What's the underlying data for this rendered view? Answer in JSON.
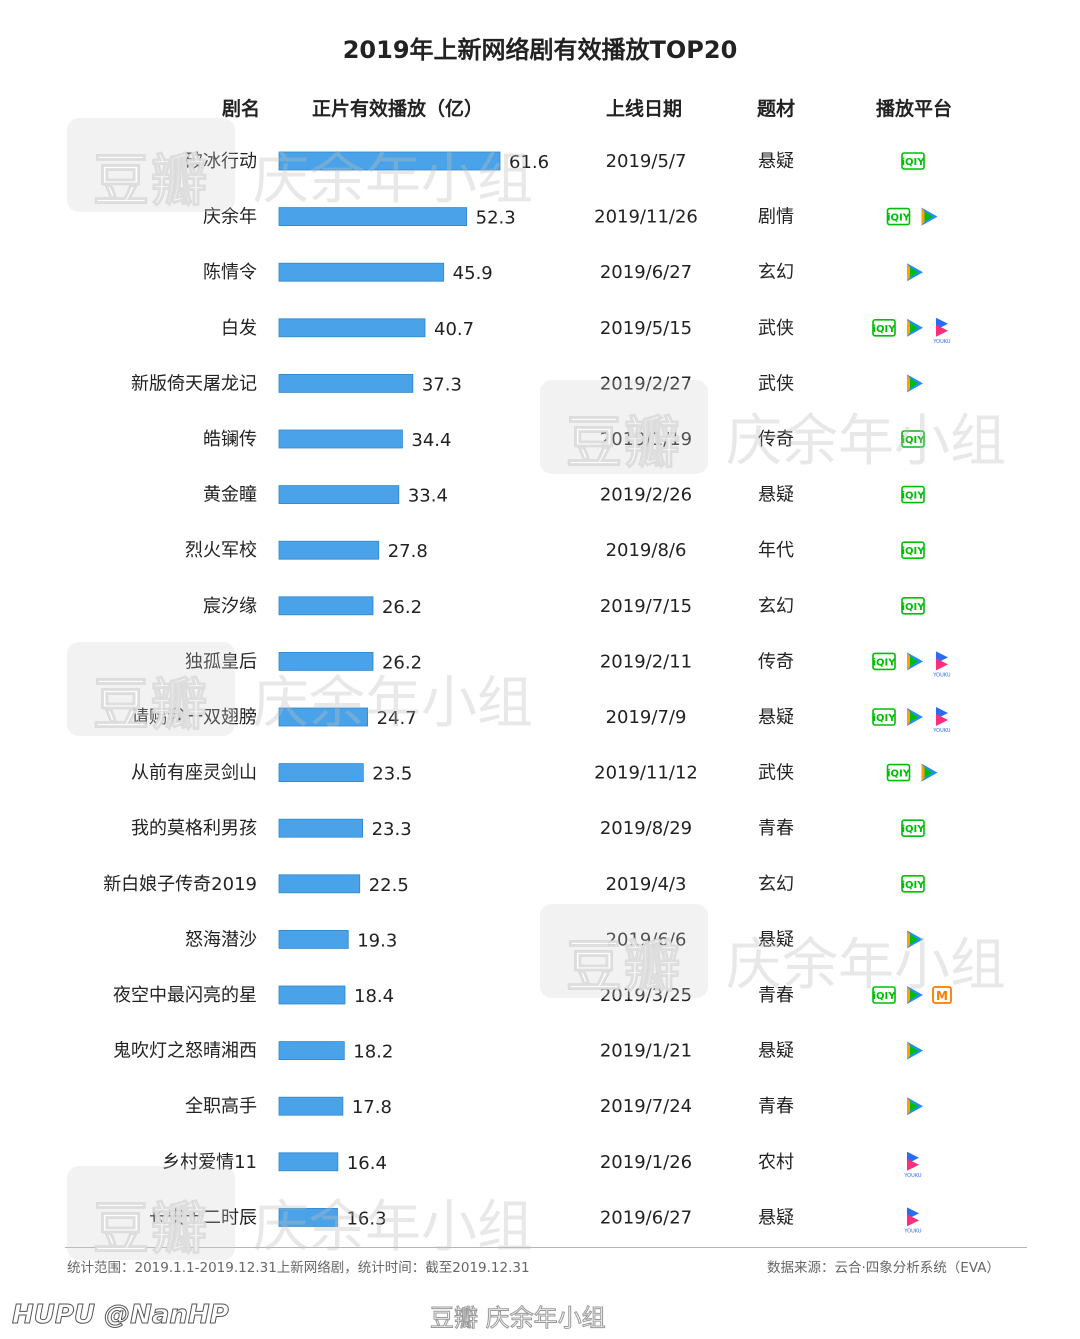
{
  "chart_data": {
    "type": "bar",
    "title": "2019年上新网络剧有效播放TOP20",
    "columns": {
      "name": "剧名",
      "plays": "正片有效播放（亿）",
      "date": "上线日期",
      "genre": "题材",
      "platform": "播放平台"
    },
    "categories": [
      "破冰行动",
      "庆余年",
      "陈情令",
      "白发",
      "新版倚天屠龙记",
      "皓镧传",
      "黄金瞳",
      "烈火军校",
      "宸汐缘",
      "独孤皇后",
      "请赐我一双翅膀",
      "从前有座灵剑山",
      "我的莫格利男孩",
      "新白娘子传奇2019",
      "怒海潜沙",
      "夜空中最闪亮的星",
      "鬼吹灯之怒晴湘西",
      "全职高手",
      "乡村爱情11",
      "长安十二时辰"
    ],
    "values": [
      61.6,
      52.3,
      45.9,
      40.7,
      37.3,
      34.4,
      33.4,
      27.8,
      26.2,
      26.2,
      24.7,
      23.5,
      23.3,
      22.5,
      19.3,
      18.4,
      18.2,
      17.8,
      16.4,
      16.3
    ],
    "dates": [
      "2019/5/7",
      "2019/11/26",
      "2019/6/27",
      "2019/5/15",
      "2019/2/27",
      "2019/1/19",
      "2019/2/26",
      "2019/8/6",
      "2019/7/15",
      "2019/2/11",
      "2019/7/9",
      "2019/11/12",
      "2019/8/29",
      "2019/4/3",
      "2019/6/6",
      "2019/3/25",
      "2019/1/21",
      "2019/7/24",
      "2019/1/26",
      "2019/6/27"
    ],
    "genres": [
      "悬疑",
      "剧情",
      "玄幻",
      "武侠",
      "武侠",
      "传奇",
      "悬疑",
      "年代",
      "玄幻",
      "传奇",
      "悬疑",
      "武侠",
      "青春",
      "玄幻",
      "悬疑",
      "青春",
      "悬疑",
      "青春",
      "农村",
      "悬疑"
    ],
    "platforms": [
      [
        "iqiyi"
      ],
      [
        "iqiyi",
        "tencent"
      ],
      [
        "tencent"
      ],
      [
        "iqiyi",
        "tencent",
        "youku"
      ],
      [
        "tencent"
      ],
      [
        "iqiyi"
      ],
      [
        "iqiyi"
      ],
      [
        "iqiyi"
      ],
      [
        "iqiyi"
      ],
      [
        "iqiyi",
        "tencent",
        "youku"
      ],
      [
        "iqiyi",
        "tencent",
        "youku"
      ],
      [
        "iqiyi",
        "tencent"
      ],
      [
        "iqiyi"
      ],
      [
        "iqiyi"
      ],
      [
        "tencent"
      ],
      [
        "iqiyi",
        "tencent",
        "mgtv"
      ],
      [
        "tencent"
      ],
      [
        "tencent"
      ],
      [
        "youku"
      ],
      [
        "youku"
      ]
    ],
    "xlim": [
      0,
      61.6
    ],
    "bar_color": "#4aa3e8"
  },
  "footer": {
    "scope": "统计范围：2019.1.1-2019.12.31上新网络剧，统计时间：截至2019.12.31",
    "source": "数据来源：云合·四象分析系统（EVA）"
  },
  "credit": "HUPU @NanHP",
  "watermark": {
    "box_text": "豆瓣",
    "group_text": "庆余年小组",
    "center_text": "豆瓣 庆余年小组"
  },
  "logos": {
    "iqiyi_text": "iQIY",
    "youku_text": "YOUKU",
    "mgtv_text": "M"
  },
  "colors": {
    "iqiyi": "#00be06",
    "tencent_blue": "#1f8fff",
    "tencent_orange": "#ff9d0b",
    "youku_blue": "#2a6df4",
    "youku_pink": "#ff2d7c",
    "mgtv": "#ff7a00"
  }
}
